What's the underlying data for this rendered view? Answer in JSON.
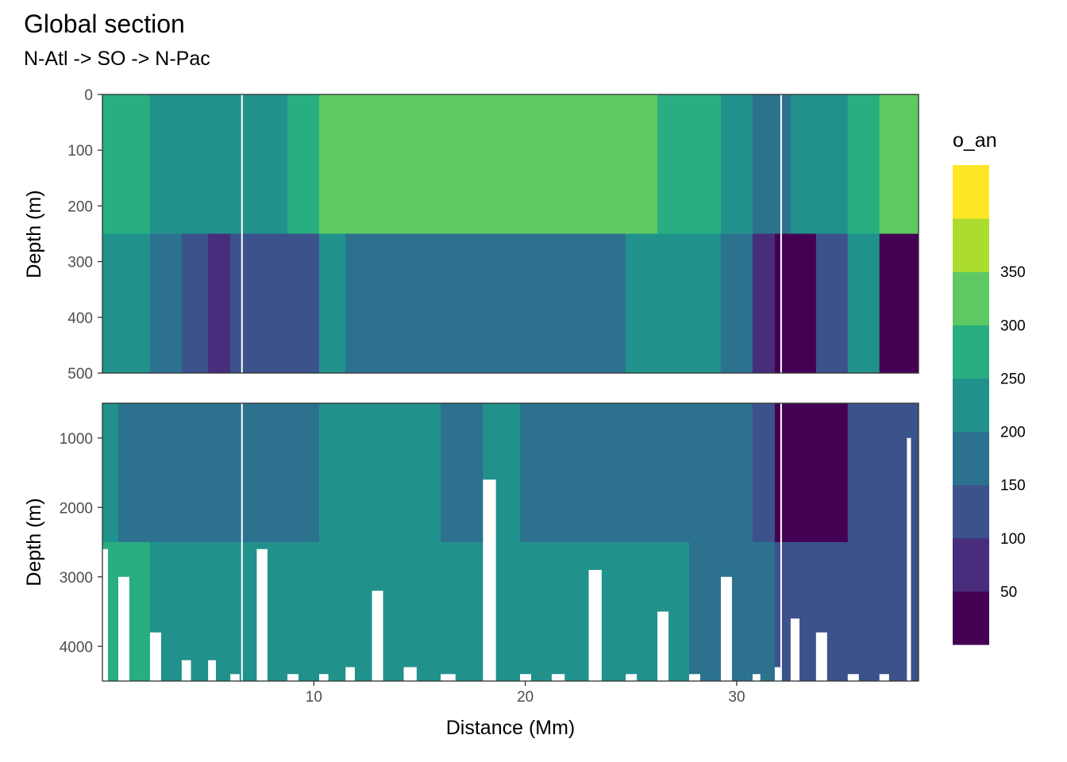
{
  "title": "Global section",
  "subtitle": "N-Atl -> SO -> N-Pac",
  "chart_data": {
    "type": "heatmap",
    "title": "Global section",
    "subtitle": "N-Atl -> SO -> N-Pac",
    "xlabel": "Distance (Mm)",
    "ylabel": "Depth (m)",
    "xlim": [
      0,
      38.6
    ],
    "x_ticks": [
      10,
      20,
      30
    ],
    "legend": {
      "title": "o_an",
      "placement": "right",
      "breaks": [
        50,
        100,
        150,
        200,
        250,
        300,
        350
      ],
      "colors": [
        "#440154",
        "#472d7b",
        "#3b528b",
        "#2c728e",
        "#21918c",
        "#28ae80",
        "#5ec962",
        "#addc30",
        "#fde725"
      ]
    },
    "panels": [
      {
        "name": "upper",
        "ylim": [
          0,
          500
        ],
        "y_ticks": [
          0,
          100,
          200,
          300,
          400,
          500
        ],
        "white_lines_x": [
          6.6,
          32.1
        ]
      },
      {
        "name": "lower",
        "ylim": [
          500,
          4500
        ],
        "y_ticks": [
          1000,
          2000,
          3000,
          4000
        ],
        "white_lines_x": [
          6.6,
          32.1
        ]
      }
    ],
    "x_stations": [
      0,
      1.5,
      3,
      4.5,
      5.5,
      6.6,
      8,
      9.5,
      11,
      12,
      13.5,
      15,
      17,
      19,
      20.5,
      22,
      24,
      25.5,
      27,
      28.5,
      30,
      31.5,
      32.1,
      33,
      34.5,
      36,
      37.5,
      38.6
    ],
    "upper_top_values": [
      250,
      250,
      225,
      225,
      225,
      225,
      225,
      250,
      300,
      325,
      325,
      325,
      325,
      325,
      340,
      325,
      325,
      325,
      250,
      250,
      225,
      175,
      175,
      200,
      225,
      250,
      300,
      325
    ],
    "upper_bottom_values": [
      230,
      200,
      170,
      130,
      75,
      130,
      100,
      130,
      200,
      175,
      175,
      175,
      175,
      175,
      175,
      175,
      175,
      200,
      230,
      200,
      150,
      75,
      40,
      30,
      130,
      200,
      40,
      30
    ],
    "lower_top_values": [
      200,
      175,
      175,
      175,
      150,
      150,
      175,
      175,
      200,
      225,
      200,
      200,
      175,
      200,
      175,
      175,
      175,
      175,
      175,
      175,
      175,
      130,
      30,
      30,
      40,
      100,
      100,
      100
    ],
    "lower_bottom_values": [
      260,
      250,
      210,
      210,
      210,
      210,
      240,
      210,
      210,
      210,
      210,
      210,
      210,
      210,
      210,
      210,
      210,
      210,
      210,
      175,
      160,
      150,
      130,
      130,
      130,
      130,
      130,
      130
    ],
    "bathymetry_depth_m": [
      2600,
      3000,
      3800,
      4200,
      4200,
      4400,
      2600,
      4400,
      4400,
      4300,
      3200,
      4300,
      4400,
      1600,
      4400,
      4400,
      2900,
      4400,
      3500,
      4400,
      3000,
      4400,
      4300,
      3600,
      3800,
      4400,
      4400,
      1000
    ]
  }
}
